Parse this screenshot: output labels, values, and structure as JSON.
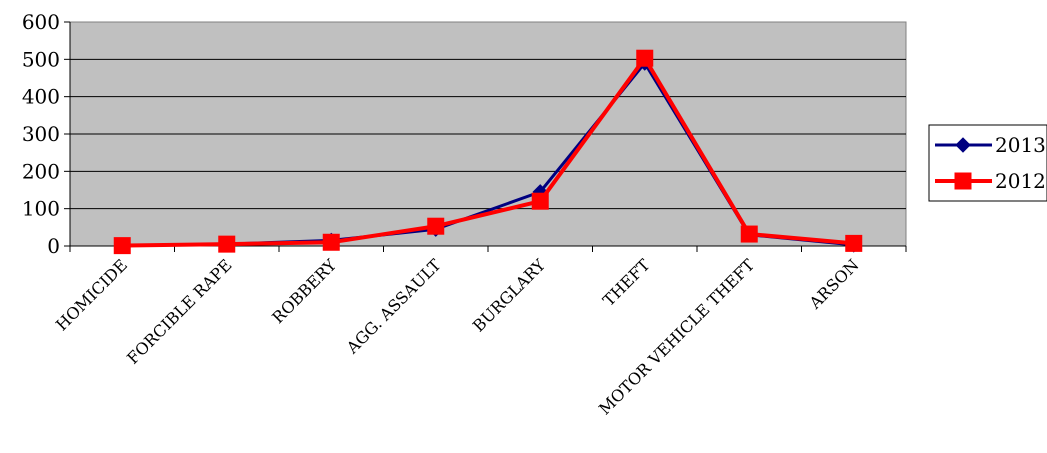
{
  "chart_data": {
    "type": "line",
    "categories": [
      "HOMICIDE",
      "FORCIBLE RAPE",
      "ROBBERY",
      "AGG. ASSAULT",
      "BURGLARY",
      "THEFT",
      "MOTOR VEHICLE THEFT",
      "ARSON"
    ],
    "series": [
      {
        "name": "2013",
        "values": [
          1,
          5,
          15,
          45,
          145,
          490,
          30,
          3
        ],
        "color": "#000080",
        "marker": "diamond"
      },
      {
        "name": "2012",
        "values": [
          1,
          5,
          10,
          53,
          120,
          503,
          32,
          7
        ],
        "color": "#ff0000",
        "marker": "square"
      }
    ],
    "ylim": [
      0,
      600
    ],
    "yticks": [
      "0",
      "100",
      "200",
      "300",
      "400",
      "500",
      "600"
    ],
    "ytick_values": [
      0,
      100,
      200,
      300,
      400,
      500,
      600
    ],
    "grid": true,
    "plot_background": "#c0c0c0",
    "legend_position": "right",
    "title": "",
    "xlabel": "",
    "ylabel": ""
  }
}
